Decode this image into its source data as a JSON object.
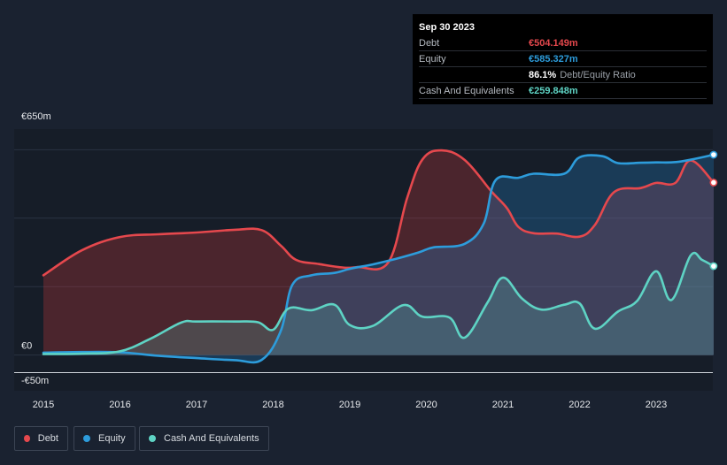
{
  "chart_data": {
    "type": "area",
    "title": "",
    "xlabel": "",
    "ylabel": "",
    "ylim": [
      -50,
      650
    ],
    "y_tick_labels": [
      {
        "value": 650,
        "label": "€650m"
      },
      {
        "value": 0,
        "label": "€0"
      },
      {
        "value": -50,
        "label": "-€50m"
      }
    ],
    "x_tick_labels": [
      {
        "value": 2015,
        "label": "2015"
      },
      {
        "value": 2016,
        "label": "2016"
      },
      {
        "value": 2017,
        "label": "2017"
      },
      {
        "value": 2018,
        "label": "2018"
      },
      {
        "value": 2019,
        "label": "2019"
      },
      {
        "value": 2020,
        "label": "2020"
      },
      {
        "value": 2021,
        "label": "2021"
      },
      {
        "value": 2022,
        "label": "2022"
      },
      {
        "value": 2023,
        "label": "2023"
      }
    ],
    "xlim": [
      2014.65,
      2023.95
    ],
    "series": [
      {
        "name": "Debt",
        "color": "#e5484d",
        "points": [
          [
            2015.0,
            233
          ],
          [
            2015.5,
            306
          ],
          [
            2016.0,
            345
          ],
          [
            2016.5,
            353
          ],
          [
            2017.0,
            358
          ],
          [
            2017.5,
            366
          ],
          [
            2017.85,
            365
          ],
          [
            2018.1,
            320
          ],
          [
            2018.3,
            278
          ],
          [
            2018.6,
            266
          ],
          [
            2018.9,
            256
          ],
          [
            2019.1,
            257
          ],
          [
            2019.5,
            270
          ],
          [
            2019.75,
            460
          ],
          [
            2019.95,
            572
          ],
          [
            2020.2,
            598
          ],
          [
            2020.5,
            570
          ],
          [
            2020.85,
            478
          ],
          [
            2021.05,
            430
          ],
          [
            2021.2,
            375
          ],
          [
            2021.4,
            356
          ],
          [
            2021.7,
            355
          ],
          [
            2022.0,
            346
          ],
          [
            2022.2,
            380
          ],
          [
            2022.45,
            476
          ],
          [
            2022.8,
            488
          ],
          [
            2023.0,
            503
          ],
          [
            2023.25,
            503
          ],
          [
            2023.45,
            569
          ],
          [
            2023.75,
            504.149
          ]
        ]
      },
      {
        "name": "Equity",
        "color": "#2d9cdb",
        "points": [
          [
            2015.0,
            7
          ],
          [
            2015.5,
            9
          ],
          [
            2016.0,
            8
          ],
          [
            2016.5,
            -2
          ],
          [
            2017.0,
            -9
          ],
          [
            2017.5,
            -15
          ],
          [
            2017.85,
            -14
          ],
          [
            2018.1,
            71
          ],
          [
            2018.25,
            205
          ],
          [
            2018.5,
            233
          ],
          [
            2018.8,
            240
          ],
          [
            2019.0,
            252
          ],
          [
            2019.3,
            265
          ],
          [
            2019.6,
            281
          ],
          [
            2019.9,
            300
          ],
          [
            2020.1,
            315
          ],
          [
            2020.5,
            325
          ],
          [
            2020.75,
            385
          ],
          [
            2020.9,
            510
          ],
          [
            2021.2,
            518
          ],
          [
            2021.4,
            530
          ],
          [
            2021.8,
            530
          ],
          [
            2022.0,
            578
          ],
          [
            2022.3,
            581
          ],
          [
            2022.5,
            561
          ],
          [
            2022.8,
            562
          ],
          [
            2023.0,
            563
          ],
          [
            2023.3,
            565
          ],
          [
            2023.75,
            585.327
          ]
        ]
      },
      {
        "name": "Cash And Equivalents",
        "color": "#5ed3c4",
        "points": [
          [
            2015.0,
            3
          ],
          [
            2015.5,
            4
          ],
          [
            2016.0,
            11
          ],
          [
            2016.4,
            48
          ],
          [
            2016.8,
            95
          ],
          [
            2017.0,
            98
          ],
          [
            2017.5,
            98
          ],
          [
            2017.8,
            96
          ],
          [
            2018.0,
            74
          ],
          [
            2018.2,
            136
          ],
          [
            2018.5,
            131
          ],
          [
            2018.8,
            147
          ],
          [
            2019.0,
            88
          ],
          [
            2019.3,
            85
          ],
          [
            2019.7,
            146
          ],
          [
            2019.95,
            112
          ],
          [
            2020.3,
            110
          ],
          [
            2020.5,
            51
          ],
          [
            2020.8,
            154
          ],
          [
            2021.0,
            226
          ],
          [
            2021.25,
            165
          ],
          [
            2021.5,
            133
          ],
          [
            2021.8,
            147
          ],
          [
            2022.0,
            151
          ],
          [
            2022.2,
            77
          ],
          [
            2022.5,
            127
          ],
          [
            2022.75,
            158
          ],
          [
            2023.0,
            245
          ],
          [
            2023.2,
            161
          ],
          [
            2023.45,
            291
          ],
          [
            2023.6,
            278
          ],
          [
            2023.75,
            259.848
          ]
        ]
      }
    ]
  },
  "tooltip": {
    "date": "Sep 30 2023",
    "rows": [
      {
        "label": "Debt",
        "value": "€504.149m",
        "color": "#e5484d"
      },
      {
        "label": "Equity",
        "value": "€585.327m",
        "color": "#2d9cdb"
      },
      {
        "ratio_value": "86.1%",
        "ratio_label": "Debt/Equity Ratio"
      },
      {
        "label": "Cash And Equivalents",
        "value": "€259.848m",
        "color": "#5ed3c4"
      }
    ]
  },
  "legend": [
    {
      "label": "Debt",
      "color": "#e5484d"
    },
    {
      "label": "Equity",
      "color": "#2d9cdb"
    },
    {
      "label": "Cash And Equivalents",
      "color": "#5ed3c4"
    }
  ]
}
